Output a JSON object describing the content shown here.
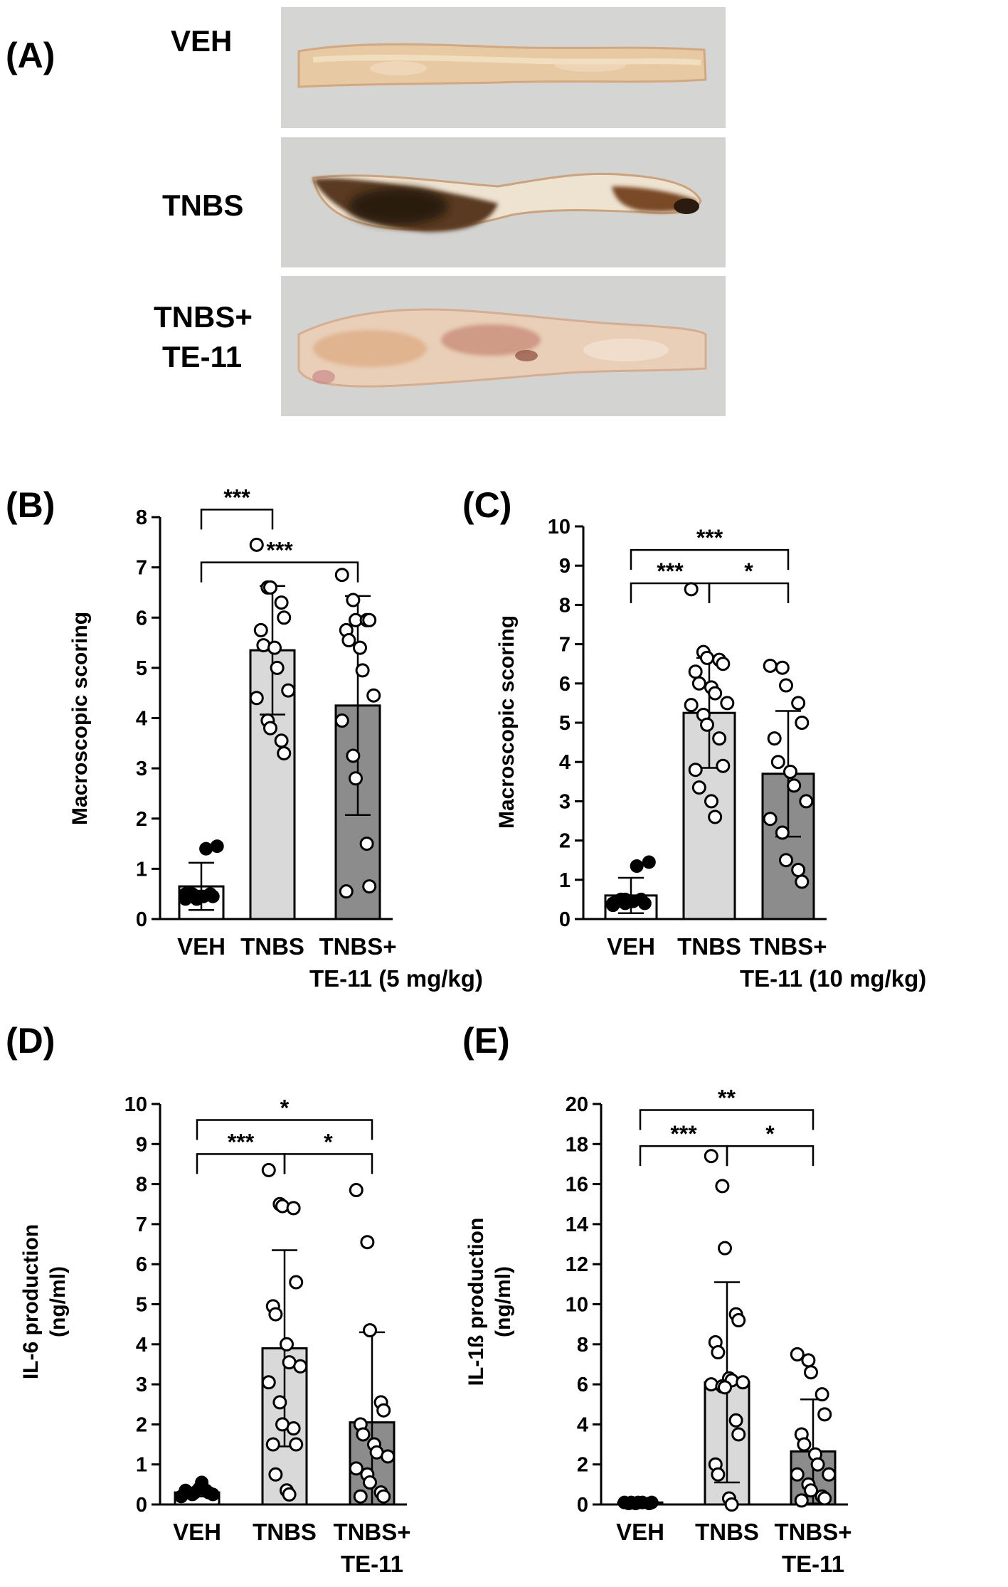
{
  "panel_a": {
    "label": "(A)",
    "rows": [
      {
        "label": "VEH",
        "label2": "",
        "tissue": "veh"
      },
      {
        "label": "TNBS",
        "label2": "",
        "tissue": "tnbs"
      },
      {
        "label": "TNBS+",
        "label2": "TE-11",
        "tissue": "treat"
      }
    ]
  },
  "colors": {
    "veh_bar": "#ffffff",
    "tnbs_bar": "#d9d9d9",
    "treat_bar": "#8c8c8c",
    "photo_bg": "#d4d4d2",
    "line": "#000000"
  },
  "chart_data": [
    {
      "panel": "(B)",
      "type": "bar",
      "ylabel": [
        "Macroscopic scoring"
      ],
      "ylim": [
        0,
        8
      ],
      "ytick_step": 1,
      "ytick_format": "int",
      "categories": [
        [
          "VEH"
        ],
        [
          "TNBS"
        ],
        [
          "TNBS+",
          "TE-11 (5 mg/kg)"
        ]
      ],
      "means": [
        0.65,
        5.35,
        4.25
      ],
      "sd": [
        0.47,
        1.28,
        2.18
      ],
      "fills": [
        "#ffffff",
        "#d9d9d9",
        "#8c8c8c"
      ],
      "points": [
        [
          0.4,
          0.4,
          0.45,
          0.5,
          0.45,
          0.5,
          0.5,
          0.45,
          1.4,
          1.45,
          0.5,
          0.4
        ],
        [
          7.45,
          6.6,
          6.6,
          6.3,
          6.0,
          5.75,
          5.45,
          5.4,
          5.0,
          4.55,
          4.4,
          3.95,
          3.8,
          3.55,
          3.3
        ],
        [
          6.85,
          6.35,
          5.95,
          5.95,
          5.95,
          5.75,
          5.55,
          5.4,
          4.95,
          4.45,
          3.95,
          3.25,
          2.8,
          1.5,
          0.65,
          0.55
        ]
      ],
      "comparisons": [
        {
          "from": 0,
          "to": 1,
          "level": 8.15,
          "label": "***"
        },
        {
          "from": 0,
          "to": 2,
          "level": 7.1,
          "label": "***"
        }
      ]
    },
    {
      "panel": "(C)",
      "type": "bar",
      "ylabel": [
        "Macroscopic scoring"
      ],
      "ylim": [
        0,
        10
      ],
      "ytick_step": 1,
      "ytick_format": "int",
      "categories": [
        [
          "VEH"
        ],
        [
          "TNBS"
        ],
        [
          "TNBS+",
          "TE-11 (10 mg/kg)"
        ]
      ],
      "means": [
        0.6,
        5.25,
        3.7
      ],
      "sd": [
        0.45,
        1.4,
        1.6
      ],
      "fills": [
        "#ffffff",
        "#d9d9d9",
        "#8c8c8c"
      ],
      "points": [
        [
          0.35,
          0.4,
          0.45,
          0.5,
          0.4,
          0.45,
          0.5,
          0.45,
          1.35,
          1.45,
          0.4,
          0.5
        ],
        [
          8.4,
          6.8,
          6.65,
          6.6,
          6.5,
          6.3,
          6.0,
          5.9,
          5.75,
          5.5,
          5.45,
          5.2,
          4.95,
          4.6,
          3.9,
          3.8,
          3.35,
          3.0,
          2.6
        ],
        [
          6.45,
          6.4,
          5.95,
          5.5,
          5.0,
          4.6,
          4.0,
          3.75,
          3.4,
          3.0,
          2.55,
          2.2,
          1.5,
          1.25,
          0.95
        ]
      ],
      "comparisons": [
        {
          "from": 0,
          "to": 2,
          "level": 9.4,
          "label": "***"
        },
        {
          "from": 0,
          "to": 1,
          "level": 8.55,
          "label": "***"
        },
        {
          "from": 1,
          "to": 2,
          "level": 8.55,
          "label": "*"
        }
      ]
    },
    {
      "panel": "(D)",
      "type": "bar",
      "ylabel": [
        "IL-6 production",
        "(ng/ml)"
      ],
      "ylim": [
        0,
        10
      ],
      "ytick_step": 1,
      "ytick_format": "int",
      "categories": [
        [
          "VEH"
        ],
        [
          "TNBS"
        ],
        [
          "TNBS+",
          "TE-11"
        ]
      ],
      "means": [
        0.3,
        3.9,
        2.05
      ],
      "sd": [
        0.1,
        2.45,
        2.25
      ],
      "fills": [
        "#ffffff",
        "#d9d9d9",
        "#8c8c8c"
      ],
      "points": [
        [
          0.2,
          0.25,
          0.3,
          0.35,
          0.3,
          0.35,
          0.3,
          0.4,
          0.55,
          0.25
        ],
        [
          8.35,
          7.5,
          7.45,
          7.4,
          5.55,
          4.95,
          4.75,
          4.0,
          3.55,
          3.45,
          3.05,
          2.55,
          2.0,
          1.9,
          1.5,
          1.5,
          0.75,
          0.35,
          0.25
        ],
        [
          7.85,
          6.55,
          4.35,
          2.55,
          2.35,
          2.0,
          1.75,
          1.5,
          1.3,
          1.2,
          0.9,
          0.75,
          0.55,
          0.3,
          0.2,
          0.2
        ]
      ],
      "comparisons": [
        {
          "from": 0,
          "to": 2,
          "level": 9.6,
          "label": "*"
        },
        {
          "from": 0,
          "to": 1,
          "level": 8.75,
          "label": "***"
        },
        {
          "from": 1,
          "to": 2,
          "level": 8.75,
          "label": "*"
        }
      ]
    },
    {
      "panel": "(E)",
      "type": "bar",
      "ylabel": [
        "IL-1ß production",
        "(ng/ml)"
      ],
      "ylim": [
        0,
        20
      ],
      "ytick_step": 2,
      "ytick_format": "int",
      "categories": [
        [
          "VEH"
        ],
        [
          "TNBS"
        ],
        [
          "TNBS+",
          "TE-11"
        ]
      ],
      "means": [
        0.1,
        6.1,
        2.65
      ],
      "sd": [
        0.05,
        5.0,
        2.6
      ],
      "fills": [
        "#ffffff",
        "#d9d9d9",
        "#8c8c8c"
      ],
      "points": [
        [
          0.1,
          0.05,
          0.1,
          0.05,
          0.1,
          0.05,
          0.1,
          0.1
        ],
        [
          17.4,
          15.9,
          12.8,
          9.5,
          9.2,
          8.1,
          7.6,
          6.3,
          6.2,
          6.1,
          6.0,
          5.9,
          5.85,
          4.2,
          3.5,
          2.0,
          1.5,
          0.3,
          0.0
        ],
        [
          7.5,
          7.2,
          6.6,
          5.5,
          4.5,
          3.5,
          3.0,
          2.5,
          2.0,
          1.5,
          1.5,
          1.0,
          0.7,
          0.4,
          0.3,
          0.2
        ]
      ],
      "comparisons": [
        {
          "from": 0,
          "to": 2,
          "level": 19.7,
          "label": "**"
        },
        {
          "from": 0,
          "to": 1,
          "level": 17.9,
          "label": "***"
        },
        {
          "from": 1,
          "to": 2,
          "level": 17.9,
          "label": "*"
        }
      ]
    }
  ]
}
